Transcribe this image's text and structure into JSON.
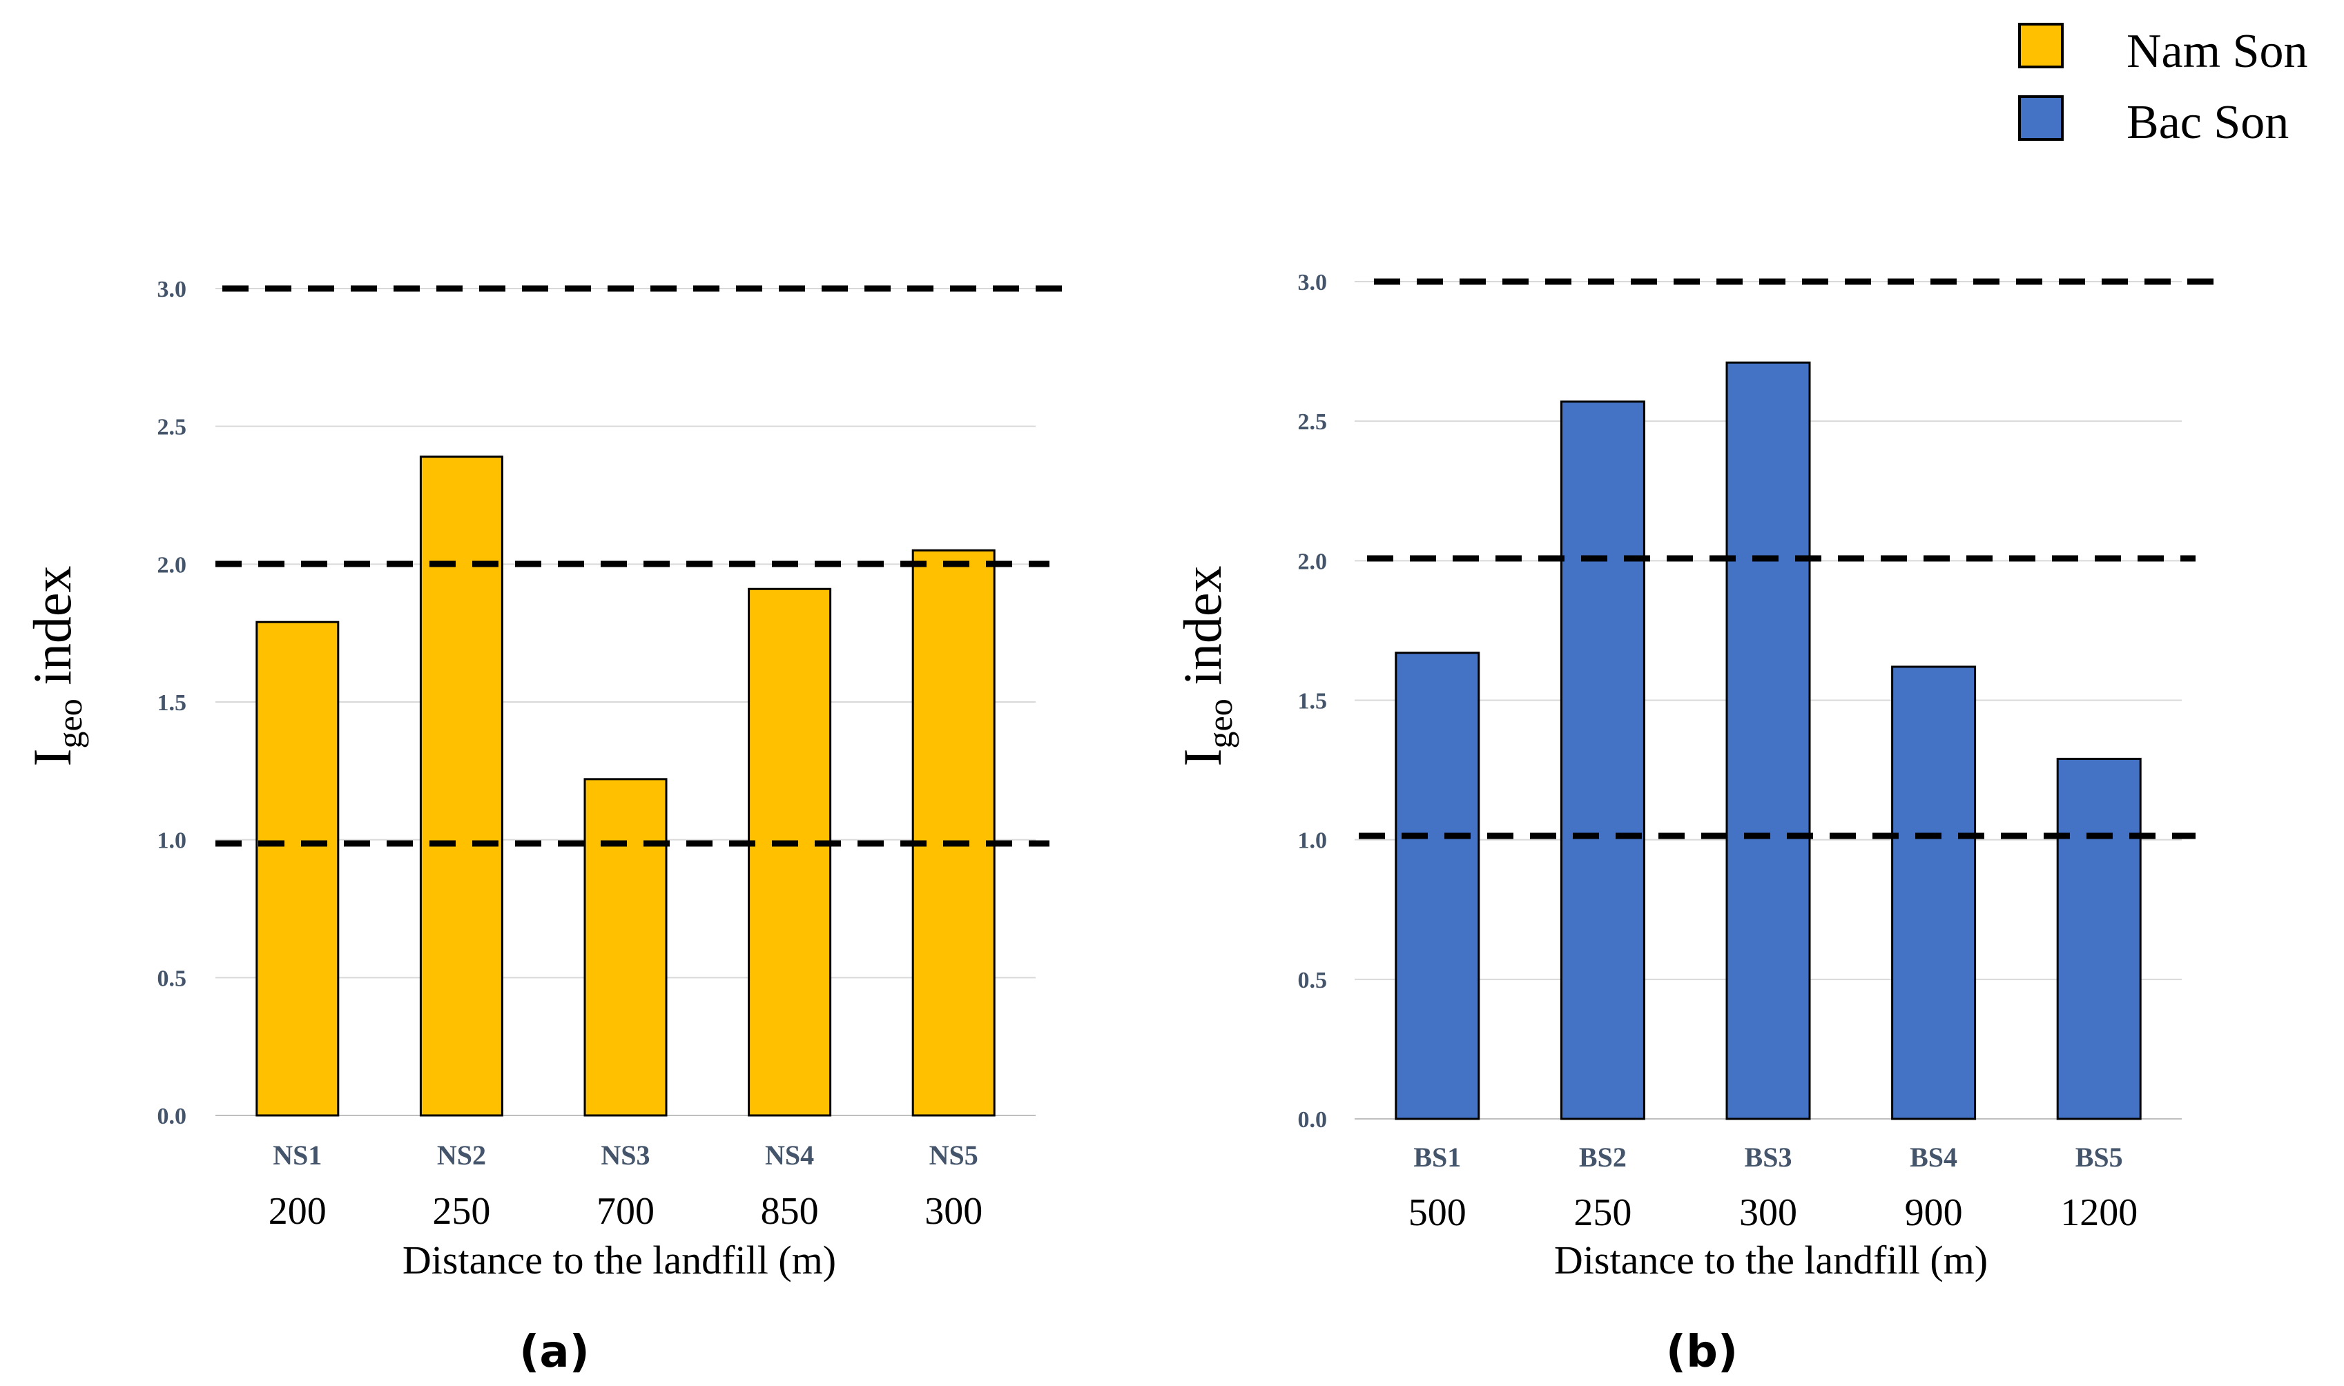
{
  "legend": [
    {
      "label": "Nam Son",
      "color": "#FFC000"
    },
    {
      "label": "Bac Son",
      "color": "#4472C4"
    }
  ],
  "chart_data": [
    {
      "type": "bar",
      "panel_label": "(a)",
      "categories": [
        "NS1",
        "NS2",
        "NS3",
        "NS4",
        "NS5"
      ],
      "distances": [
        "200",
        "250",
        "700",
        "850",
        "300"
      ],
      "values": [
        1.79,
        2.39,
        1.22,
        1.91,
        2.05
      ],
      "color": "#FFC000",
      "xlabel": "Distance to the landfill (m)",
      "ylabel_main": "I",
      "ylabel_sub": "geo",
      "ylabel_rest": " index",
      "ylim": [
        0,
        3
      ],
      "ticks": [
        "0.0",
        "0.5",
        "1.0",
        "1.5",
        "2.0",
        "2.5",
        "3.0"
      ],
      "reference_lines": [
        1,
        2,
        3
      ],
      "grid": true
    },
    {
      "type": "bar",
      "panel_label": "(b)",
      "categories": [
        "BS1",
        "BS2",
        "BS3",
        "BS4",
        "BS5"
      ],
      "distances": [
        "500",
        "250",
        "300",
        "900",
        "1200"
      ],
      "values": [
        1.67,
        2.57,
        2.71,
        1.62,
        1.29
      ],
      "color": "#4472C4",
      "xlabel": "Distance to the landfill (m)",
      "ylabel_main": "I",
      "ylabel_sub": "geo",
      "ylabel_rest": " index",
      "ylim": [
        0,
        3
      ],
      "ticks": [
        "0.0",
        "0.5",
        "1.0",
        "1.5",
        "2.0",
        "2.5",
        "3.0"
      ],
      "reference_lines": [
        1,
        2,
        3
      ],
      "grid": true
    }
  ]
}
